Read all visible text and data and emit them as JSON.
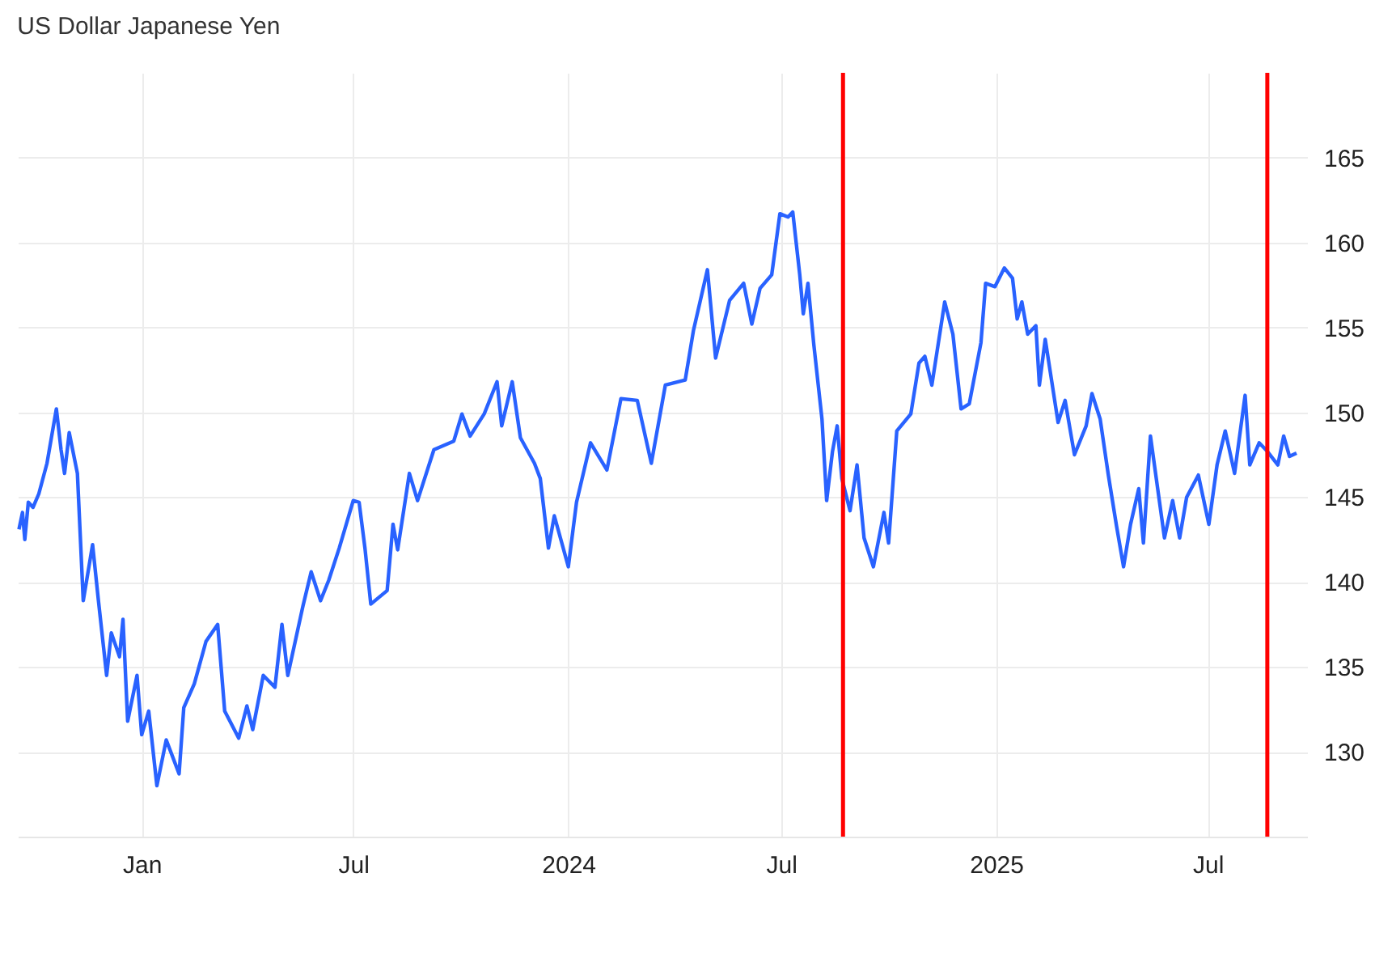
{
  "chart_data": {
    "type": "line",
    "title": "US Dollar Japanese Yen",
    "x": [
      "2022-09-18",
      "2022-09-21",
      "2022-09-23",
      "2022-09-26",
      "2022-09-30",
      "2022-10-05",
      "2022-10-12",
      "2022-10-20",
      "2022-10-24",
      "2022-10-27",
      "2022-10-31",
      "2022-11-07",
      "2022-11-12",
      "2022-11-20",
      "2022-11-25",
      "2022-12-02",
      "2022-12-06",
      "2022-12-13",
      "2022-12-16",
      "2022-12-20",
      "2022-12-28",
      "2023-01-01",
      "2023-01-07",
      "2023-01-14",
      "2023-01-22",
      "2023-02-02",
      "2023-02-06",
      "2023-02-15",
      "2023-02-25",
      "2023-03-07",
      "2023-03-13",
      "2023-03-25",
      "2023-04-01",
      "2023-04-06",
      "2023-04-15",
      "2023-04-25",
      "2023-05-01",
      "2023-05-06",
      "2023-05-19",
      "2023-05-26",
      "2023-06-03",
      "2023-06-10",
      "2023-06-19",
      "2023-07-01",
      "2023-07-06",
      "2023-07-11",
      "2023-07-16",
      "2023-07-30",
      "2023-08-04",
      "2023-08-08",
      "2023-08-18",
      "2023-08-25",
      "2023-09-08",
      "2023-09-25",
      "2023-10-02",
      "2023-10-09",
      "2023-10-21",
      "2023-11-01",
      "2023-11-05",
      "2023-11-14",
      "2023-11-21",
      "2023-12-03",
      "2023-12-08",
      "2023-12-15",
      "2023-12-20",
      "2024-01-01",
      "2024-01-08",
      "2024-01-20",
      "2024-02-03",
      "2024-02-15",
      "2024-02-29",
      "2024-03-12",
      "2024-03-24",
      "2024-04-10",
      "2024-04-17",
      "2024-04-29",
      "2024-05-06",
      "2024-05-18",
      "2024-05-30",
      "2024-06-06",
      "2024-06-13",
      "2024-06-23",
      "2024-06-30",
      "2024-07-07",
      "2024-07-11",
      "2024-07-17",
      "2024-07-20",
      "2024-07-24",
      "2024-07-29",
      "2024-08-05",
      "2024-08-09",
      "2024-08-14",
      "2024-08-18",
      "2024-08-22",
      "2024-08-29",
      "2024-09-04",
      "2024-09-10",
      "2024-09-18",
      "2024-09-27",
      "2024-10-01",
      "2024-10-08",
      "2024-10-20",
      "2024-10-27",
      "2024-11-01",
      "2024-11-07",
      "2024-11-18",
      "2024-11-25",
      "2024-12-02",
      "2024-12-09",
      "2024-12-19",
      "2024-12-23",
      "2024-12-31",
      "2025-01-08",
      "2025-01-15",
      "2025-01-19",
      "2025-01-23",
      "2025-01-28",
      "2025-02-04",
      "2025-02-07",
      "2025-02-12",
      "2025-02-23",
      "2025-03-01",
      "2025-03-09",
      "2025-03-19",
      "2025-03-24",
      "2025-03-31",
      "2025-04-07",
      "2025-04-14",
      "2025-04-20",
      "2025-04-26",
      "2025-05-03",
      "2025-05-07",
      "2025-05-13",
      "2025-05-25",
      "2025-06-01",
      "2025-06-07",
      "2025-06-13",
      "2025-06-23",
      "2025-07-02",
      "2025-07-09",
      "2025-07-16",
      "2025-07-24",
      "2025-08-02",
      "2025-08-06",
      "2025-08-14",
      "2025-08-21",
      "2025-08-30",
      "2025-09-04",
      "2025-09-09",
      "2025-09-15"
    ],
    "series": [
      {
        "color": "#2962ff",
        "values": [
          143.1,
          144.1,
          142.5,
          144.7,
          144.4,
          145.2,
          147.0,
          150.2,
          147.8,
          146.4,
          148.8,
          146.4,
          138.9,
          142.2,
          138.9,
          134.5,
          137.0,
          135.6,
          137.8,
          131.8,
          134.5,
          131.0,
          132.4,
          128.0,
          130.7,
          128.7,
          132.6,
          134.0,
          136.5,
          137.5,
          132.4,
          130.8,
          132.7,
          131.3,
          134.5,
          133.8,
          137.5,
          134.5,
          138.6,
          140.6,
          138.9,
          140.1,
          142.0,
          144.8,
          144.7,
          142.0,
          138.7,
          139.5,
          143.4,
          141.9,
          146.4,
          144.8,
          147.8,
          148.3,
          149.9,
          148.6,
          149.9,
          151.8,
          149.2,
          151.8,
          148.5,
          147.0,
          146.1,
          142.0,
          143.9,
          140.9,
          144.7,
          148.2,
          146.6,
          150.8,
          150.7,
          147.0,
          151.6,
          151.9,
          154.8,
          158.4,
          153.2,
          156.6,
          157.6,
          155.2,
          157.3,
          158.1,
          161.7,
          161.5,
          161.8,
          158.1,
          155.8,
          157.6,
          154.0,
          149.6,
          144.8,
          147.7,
          149.2,
          146.1,
          144.2,
          146.9,
          142.6,
          140.9,
          144.1,
          142.3,
          148.9,
          149.9,
          152.9,
          153.3,
          151.6,
          156.5,
          154.6,
          150.2,
          150.5,
          154.1,
          157.6,
          157.4,
          158.5,
          157.9,
          155.5,
          156.5,
          154.6,
          155.1,
          151.6,
          154.3,
          149.4,
          150.7,
          147.5,
          149.2,
          151.1,
          149.6,
          146.3,
          143.3,
          140.9,
          143.4,
          145.5,
          142.3,
          148.6,
          142.6,
          144.8,
          142.6,
          145.0,
          146.3,
          143.4,
          146.9,
          148.9,
          146.4,
          151.0,
          146.9,
          148.2,
          147.7,
          146.9,
          148.6,
          147.4,
          147.6
        ]
      }
    ],
    "xlim": [
      "2022-09-17",
      "2025-09-24"
    ],
    "xticks": [
      {
        "value": "2023-01-01",
        "label": "Jan"
      },
      {
        "value": "2023-07-01",
        "label": "Jul"
      },
      {
        "value": "2024-01-01",
        "label": "2024"
      },
      {
        "value": "2024-07-01",
        "label": "Jul"
      },
      {
        "value": "2025-01-01",
        "label": "2025"
      },
      {
        "value": "2025-07-01",
        "label": "Jul"
      }
    ],
    "ylim": [
      125,
      170
    ],
    "yticks": [
      130,
      135,
      140,
      145,
      150,
      155,
      160,
      165
    ],
    "ref_lines": [
      {
        "axis": "x",
        "value": "2024-08-23",
        "color": "#ff0000"
      },
      {
        "axis": "x",
        "value": "2025-08-21",
        "color": "#ff0000"
      }
    ],
    "grid": true,
    "line_style": "solid",
    "marker": "none"
  }
}
